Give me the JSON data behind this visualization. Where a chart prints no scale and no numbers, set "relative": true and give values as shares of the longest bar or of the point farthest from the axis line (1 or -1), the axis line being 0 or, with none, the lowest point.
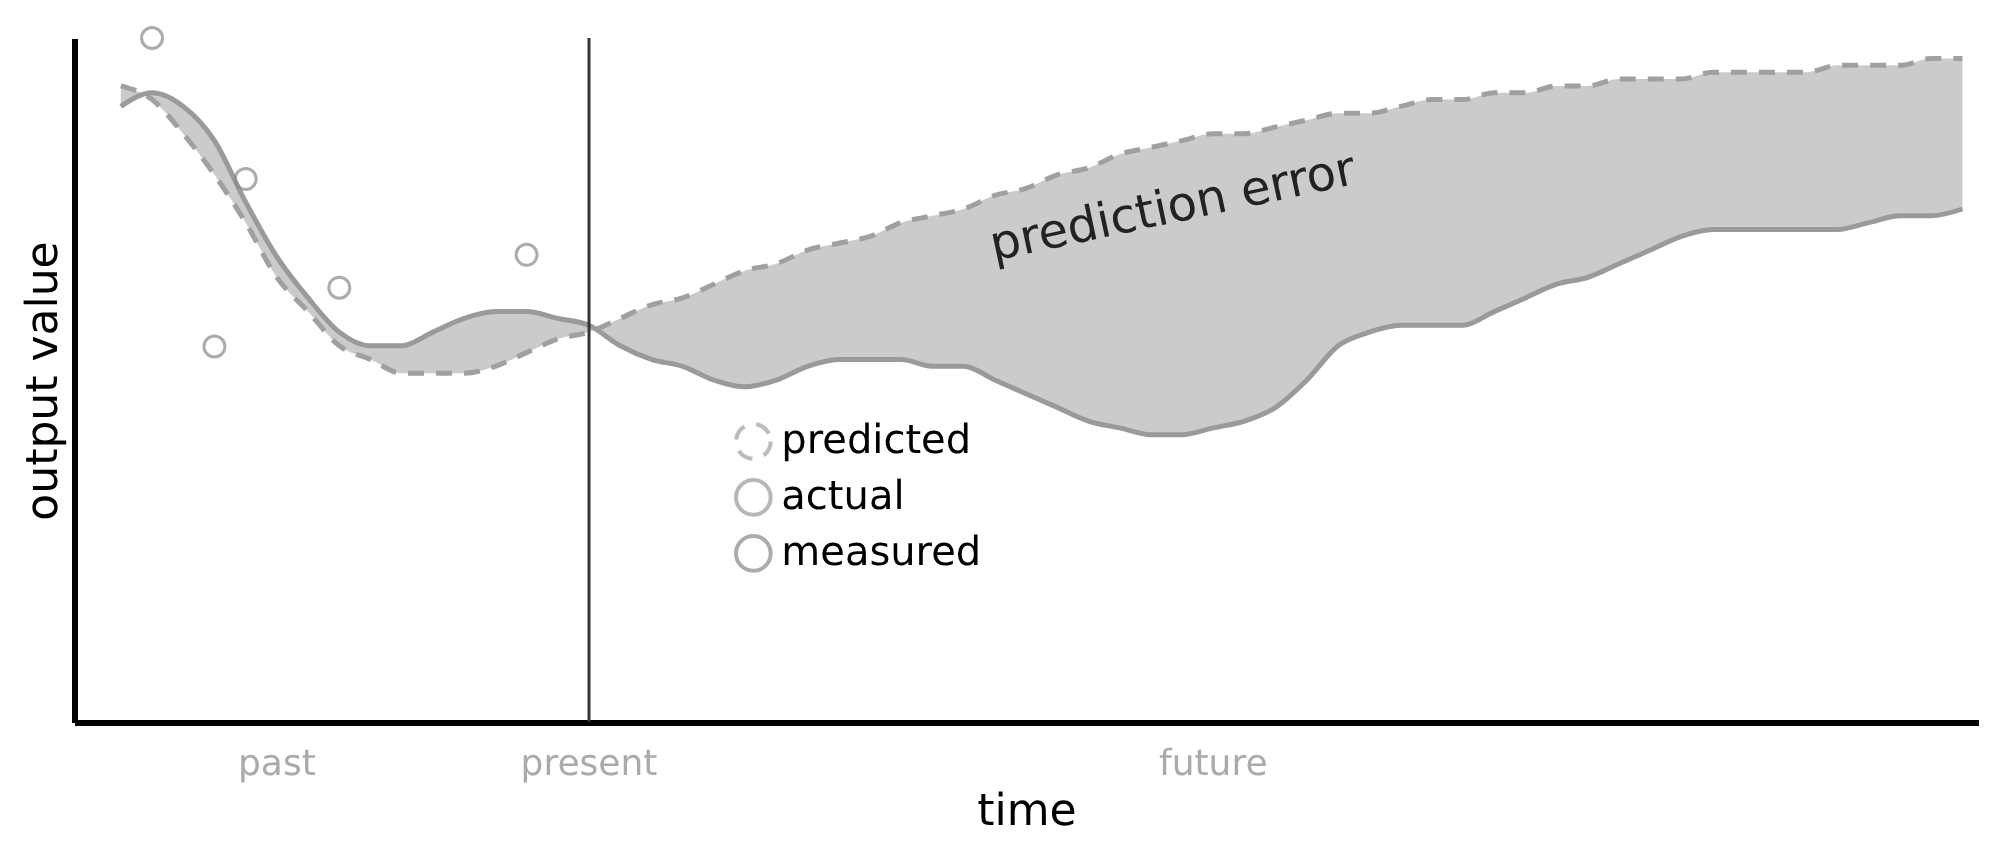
{
  "chart_data": {
    "type": "line",
    "relative": true,
    "xlabel": "time",
    "ylabel": "output value",
    "categories": [
      null,
      null,
      null,
      null,
      null,
      null,
      "past",
      null,
      null,
      null,
      null,
      null,
      null,
      null,
      null,
      null,
      "present",
      null,
      null,
      null,
      null,
      null,
      null,
      null,
      null,
      null,
      null,
      null,
      null,
      null,
      null,
      null,
      null,
      null,
      null,
      null,
      "future",
      null,
      null,
      null,
      null,
      null,
      null,
      null,
      null,
      null,
      null,
      null,
      null,
      null,
      null,
      null,
      null,
      null,
      null,
      null,
      null,
      null,
      null,
      null,
      null
    ],
    "tick_labels": "x",
    "legend": "center",
    "grid": false,
    "series": [
      {
        "name": "predicted",
        "line_style": "dashed",
        "color": "#a0a0a0",
        "values": [
          null,
          0.93,
          0.91,
          0.86,
          0.8,
          0.73,
          0.65,
          0.6,
          0.55,
          0.53,
          0.51,
          0.51,
          0.51,
          0.52,
          0.54,
          0.56,
          0.57,
          0.59,
          0.61,
          0.62,
          0.64,
          0.66,
          0.67,
          0.69,
          0.7,
          0.71,
          0.73,
          0.74,
          0.75,
          0.77,
          0.78,
          0.8,
          0.81,
          0.83,
          0.84,
          0.85,
          0.86,
          0.86,
          0.87,
          0.88,
          0.89,
          0.89,
          0.9,
          0.91,
          0.91,
          0.92,
          0.92,
          0.93,
          0.93,
          0.94,
          0.94,
          0.94,
          0.95,
          0.95,
          0.95,
          0.95,
          0.96,
          0.96,
          0.96,
          0.97,
          0.97
        ],
        "lower": [
          null,
          0.9,
          0.92,
          0.9,
          0.85,
          0.76,
          0.68,
          0.62,
          0.57,
          0.55,
          0.55,
          0.57,
          0.59,
          0.6,
          0.6,
          0.59,
          0.58,
          0.55,
          0.53,
          0.52,
          0.5,
          0.49,
          0.5,
          0.52,
          0.53,
          0.53,
          0.53,
          0.52,
          0.52,
          0.5,
          0.48,
          0.46,
          0.44,
          0.43,
          0.42,
          0.42,
          0.43,
          0.44,
          0.46,
          0.5,
          0.55,
          0.57,
          0.58,
          0.58,
          0.58,
          0.6,
          0.62,
          0.64,
          0.65,
          0.67,
          0.69,
          0.71,
          0.72,
          0.72,
          0.72,
          0.72,
          0.72,
          0.73,
          0.74,
          0.74,
          0.75
        ],
        "upper": [
          null,
          0.93,
          0.91,
          0.86,
          0.8,
          0.73,
          0.65,
          0.6,
          0.55,
          0.53,
          0.51,
          0.51,
          0.51,
          0.52,
          0.54,
          0.56,
          0.57,
          0.59,
          0.61,
          0.62,
          0.64,
          0.66,
          0.67,
          0.69,
          0.7,
          0.71,
          0.73,
          0.74,
          0.75,
          0.77,
          0.78,
          0.8,
          0.81,
          0.83,
          0.84,
          0.85,
          0.86,
          0.86,
          0.87,
          0.88,
          0.89,
          0.89,
          0.9,
          0.91,
          0.91,
          0.92,
          0.92,
          0.93,
          0.93,
          0.94,
          0.94,
          0.94,
          0.95,
          0.95,
          0.95,
          0.95,
          0.96,
          0.96,
          0.96,
          0.97,
          0.97
        ]
      },
      {
        "name": "actual",
        "line_style": "solid",
        "color": "#9a9a9a",
        "values": [
          null,
          0.9,
          0.92,
          0.9,
          0.85,
          0.76,
          0.68,
          0.62,
          0.57,
          0.55,
          0.55,
          0.57,
          0.59,
          0.6,
          0.6,
          0.59,
          0.58,
          0.55,
          0.53,
          0.52,
          0.5,
          0.49,
          0.5,
          0.52,
          0.53,
          0.53,
          0.53,
          0.52,
          0.52,
          0.5,
          0.48,
          0.46,
          0.44,
          0.43,
          0.42,
          0.42,
          0.43,
          0.44,
          0.46,
          0.5,
          0.55,
          0.57,
          0.58,
          0.58,
          0.58,
          0.6,
          0.62,
          0.64,
          0.65,
          0.67,
          0.69,
          0.71,
          0.72,
          0.72,
          0.72,
          0.72,
          0.72,
          0.73,
          0.74,
          0.74,
          0.75
        ]
      },
      {
        "name": "measured",
        "type": "scatter",
        "marker": "circle",
        "color": "#8a8a8a",
        "values": [
          null,
          null,
          1.0,
          null,
          0.549,
          0.794,
          null,
          null,
          0.635,
          null,
          null,
          null,
          null,
          null,
          0.683,
          null,
          null,
          null,
          null,
          null,
          null,
          null,
          null,
          null,
          null,
          null,
          null,
          null,
          null,
          null,
          null,
          null,
          null,
          null,
          null,
          null,
          null,
          null,
          null,
          null,
          null,
          null,
          null,
          null,
          null,
          null,
          null,
          null,
          null,
          null,
          null,
          null,
          null,
          null,
          null,
          null,
          null,
          null,
          null,
          null,
          null
        ]
      }
    ],
    "ref_lines": [
      {
        "axis": "x",
        "value": "present",
        "label": null,
        "color": "#333333"
      }
    ],
    "annotations": [
      "prediction error"
    ]
  }
}
